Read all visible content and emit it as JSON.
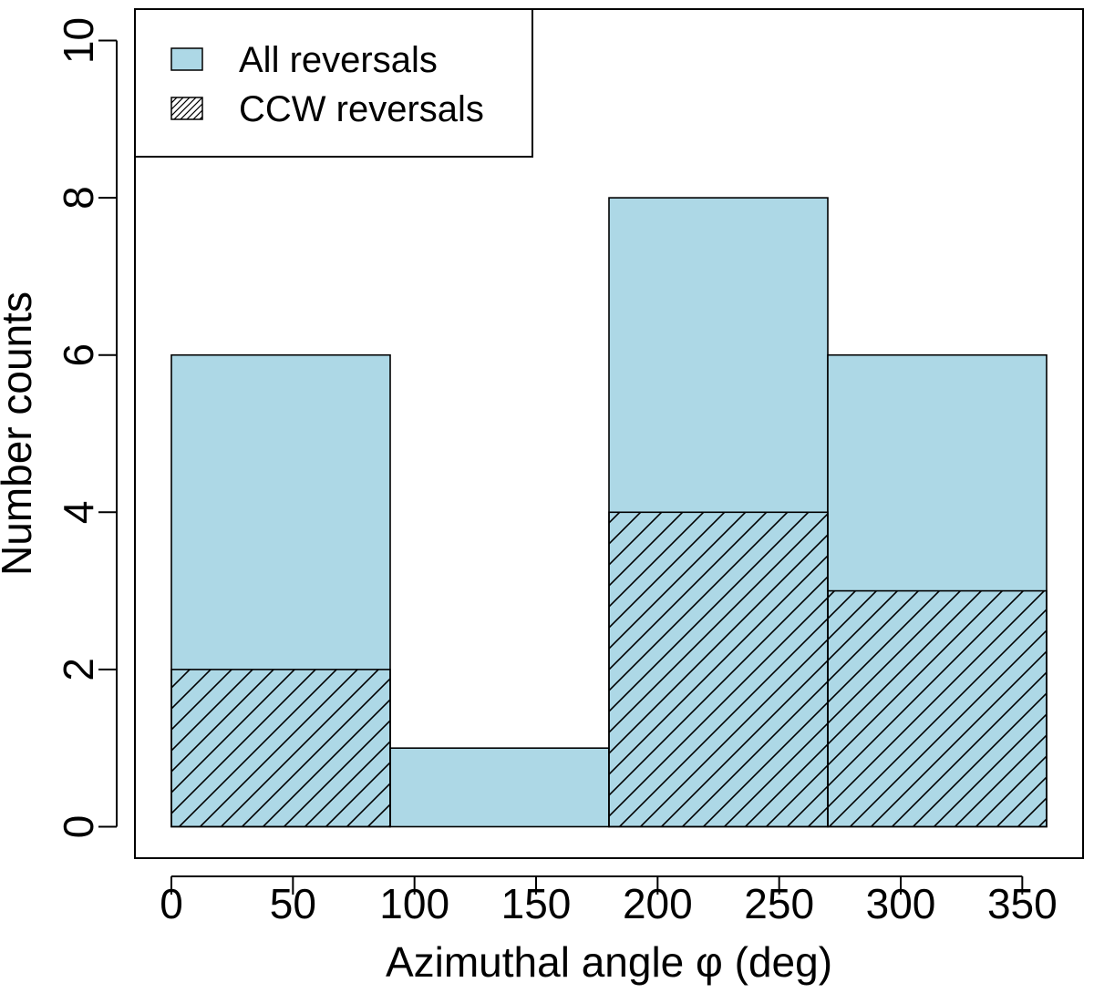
{
  "colors": {
    "all_fill": "#add8e6",
    "stroke": "#000000",
    "background": "#ffffff"
  },
  "chart_data": {
    "type": "bar",
    "subtype": "histogram",
    "title": "",
    "xlabel": "Azimuthal angle φ (deg)",
    "ylabel": "Number counts",
    "xlim": [
      -15,
      375
    ],
    "ylim": [
      -0.4,
      10.4
    ],
    "xticks": [
      0,
      50,
      100,
      150,
      200,
      250,
      300,
      350
    ],
    "yticks": [
      0,
      2,
      4,
      6,
      8,
      10
    ],
    "bins": [
      [
        0,
        90
      ],
      [
        90,
        180
      ],
      [
        180,
        270
      ],
      [
        270,
        360
      ]
    ],
    "series": [
      {
        "name": "All reversals",
        "fill": "solid",
        "values": [
          6,
          1,
          8,
          6
        ]
      },
      {
        "name": "CCW reversals",
        "fill": "hatched",
        "values": [
          2,
          0,
          4,
          3
        ]
      }
    ],
    "legend": {
      "position": "top-left",
      "entries": [
        "All reversals",
        "CCW reversals"
      ]
    },
    "grid": false
  }
}
